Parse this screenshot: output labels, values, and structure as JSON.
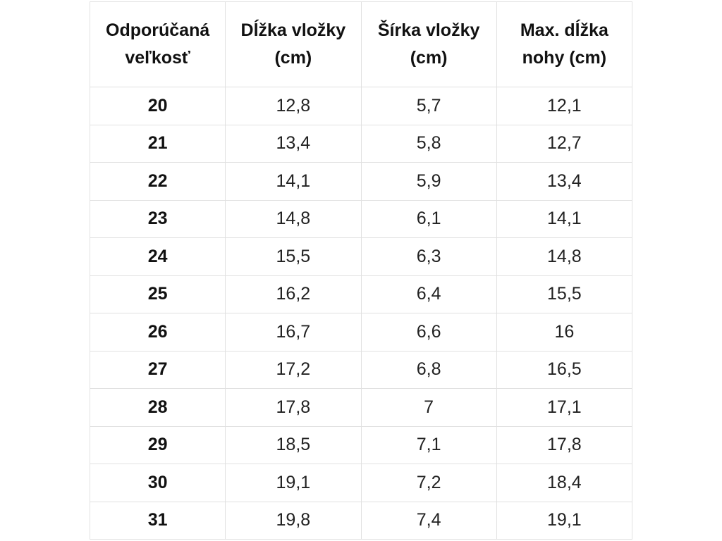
{
  "table": {
    "headers": [
      "Odporúčaná veľkosť",
      "Dĺžka vložky (cm)",
      "Šírka vložky (cm)",
      "Max. dĺžka nohy (cm)"
    ],
    "rows": [
      [
        "20",
        "12,8",
        "5,7",
        "12,1"
      ],
      [
        "21",
        "13,4",
        "5,8",
        "12,7"
      ],
      [
        "22",
        "14,1",
        "5,9",
        "13,4"
      ],
      [
        "23",
        "14,8",
        "6,1",
        "14,1"
      ],
      [
        "24",
        "15,5",
        "6,3",
        "14,8"
      ],
      [
        "25",
        "16,2",
        "6,4",
        "15,5"
      ],
      [
        "26",
        "16,7",
        "6,6",
        "16"
      ],
      [
        "27",
        "17,2",
        "6,8",
        "16,5"
      ],
      [
        "28",
        "17,8",
        "7",
        "17,1"
      ],
      [
        "29",
        "18,5",
        "7,1",
        "17,8"
      ],
      [
        "30",
        "19,1",
        "7,2",
        "18,4"
      ],
      [
        "31",
        "19,8",
        "7,4",
        "19,1"
      ]
    ]
  },
  "colors": {
    "background": "#ffffff",
    "border": "#e1e1e1",
    "header_text": "#111111",
    "cell_text": "#222222"
  },
  "chart_data": {
    "type": "table",
    "title": "",
    "columns": [
      "Odporúčaná veľkosť",
      "Dĺžka vložky (cm)",
      "Šírka vložky (cm)",
      "Max. dĺžka nohy (cm)"
    ],
    "rows": [
      [
        20,
        12.8,
        5.7,
        12.1
      ],
      [
        21,
        13.4,
        5.8,
        12.7
      ],
      [
        22,
        14.1,
        5.9,
        13.4
      ],
      [
        23,
        14.8,
        6.1,
        14.1
      ],
      [
        24,
        15.5,
        6.3,
        14.8
      ],
      [
        25,
        16.2,
        6.4,
        15.5
      ],
      [
        26,
        16.7,
        6.6,
        16
      ],
      [
        27,
        17.2,
        6.8,
        16.5
      ],
      [
        28,
        17.8,
        7,
        17.1
      ],
      [
        29,
        18.5,
        7.1,
        17.8
      ],
      [
        30,
        19.1,
        7.2,
        18.4
      ],
      [
        31,
        19.8,
        7.4,
        19.1
      ]
    ],
    "notes": "Decimal comma formatting as displayed; grid borders on; header row bold; first column bold"
  }
}
